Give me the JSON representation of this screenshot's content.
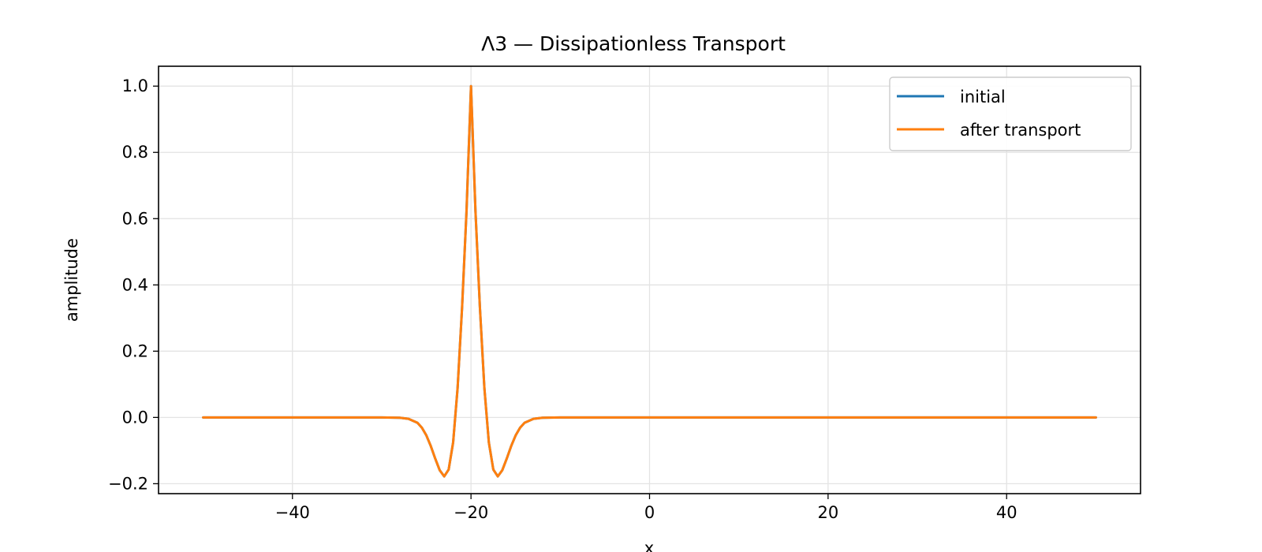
{
  "chart_data": {
    "type": "line",
    "title": "Λ3 — Dissipationless Transport",
    "xlabel": "x",
    "ylabel": "amplitude",
    "xlim": [
      -55,
      55
    ],
    "ylim": [
      -0.23,
      1.06
    ],
    "x_ticks": [
      -40,
      -20,
      0,
      20,
      40
    ],
    "x_tick_labels": [
      "−40",
      "−20",
      "0",
      "20",
      "40"
    ],
    "y_ticks": [
      -0.2,
      0.0,
      0.2,
      0.4,
      0.6,
      0.8,
      1.0
    ],
    "y_tick_labels": [
      "−0.2",
      "0.0",
      "0.2",
      "0.4",
      "0.6",
      "0.8",
      "1.0"
    ],
    "grid": true,
    "legend_position": "top-right",
    "series": [
      {
        "name": "initial",
        "color": "#1f77b4",
        "x": [
          -50,
          -30,
          -28,
          -27,
          -26,
          -25.5,
          -25,
          -24.5,
          -24,
          -23.5,
          -23,
          -22.5,
          -22,
          -21.5,
          -21,
          -20.5,
          -20,
          -19.5,
          -19,
          -18.5,
          -18,
          -17.5,
          -17,
          -16.5,
          -16,
          -15.5,
          -15,
          -14.5,
          -14,
          -13,
          -12,
          -10,
          0,
          20,
          50
        ],
        "y": [
          0,
          0,
          -0.0009,
          -0.0042,
          -0.016,
          -0.0309,
          -0.0542,
          -0.0865,
          -0.1246,
          -0.1596,
          -0.1779,
          -0.1572,
          -0.0752,
          0.0888,
          0.3312,
          0.6235,
          1.0,
          0.6235,
          0.3312,
          0.0888,
          -0.0752,
          -0.1572,
          -0.1779,
          -0.1596,
          -0.1246,
          -0.0865,
          -0.0542,
          -0.0309,
          -0.016,
          -0.0042,
          -0.0009,
          0,
          0,
          0,
          0
        ]
      },
      {
        "name": "after transport",
        "color": "#ff7f0e",
        "x": [
          -50,
          -30,
          -28,
          -27,
          -26,
          -25.5,
          -25,
          -24.5,
          -24,
          -23.5,
          -23,
          -22.5,
          -22,
          -21.5,
          -21,
          -20.5,
          -20,
          -19.5,
          -19,
          -18.5,
          -18,
          -17.5,
          -17,
          -16.5,
          -16,
          -15.5,
          -15,
          -14.5,
          -14,
          -13,
          -12,
          -10,
          0,
          20,
          50
        ],
        "y": [
          0,
          0,
          -0.0009,
          -0.0042,
          -0.016,
          -0.0309,
          -0.0542,
          -0.0865,
          -0.1246,
          -0.1596,
          -0.1779,
          -0.1572,
          -0.0752,
          0.0888,
          0.3312,
          0.6235,
          1.0,
          0.6235,
          0.3312,
          0.0888,
          -0.0752,
          -0.1572,
          -0.1779,
          -0.1596,
          -0.1246,
          -0.0865,
          -0.0542,
          -0.0309,
          -0.016,
          -0.0042,
          -0.0009,
          0,
          0,
          0,
          0
        ]
      }
    ]
  }
}
